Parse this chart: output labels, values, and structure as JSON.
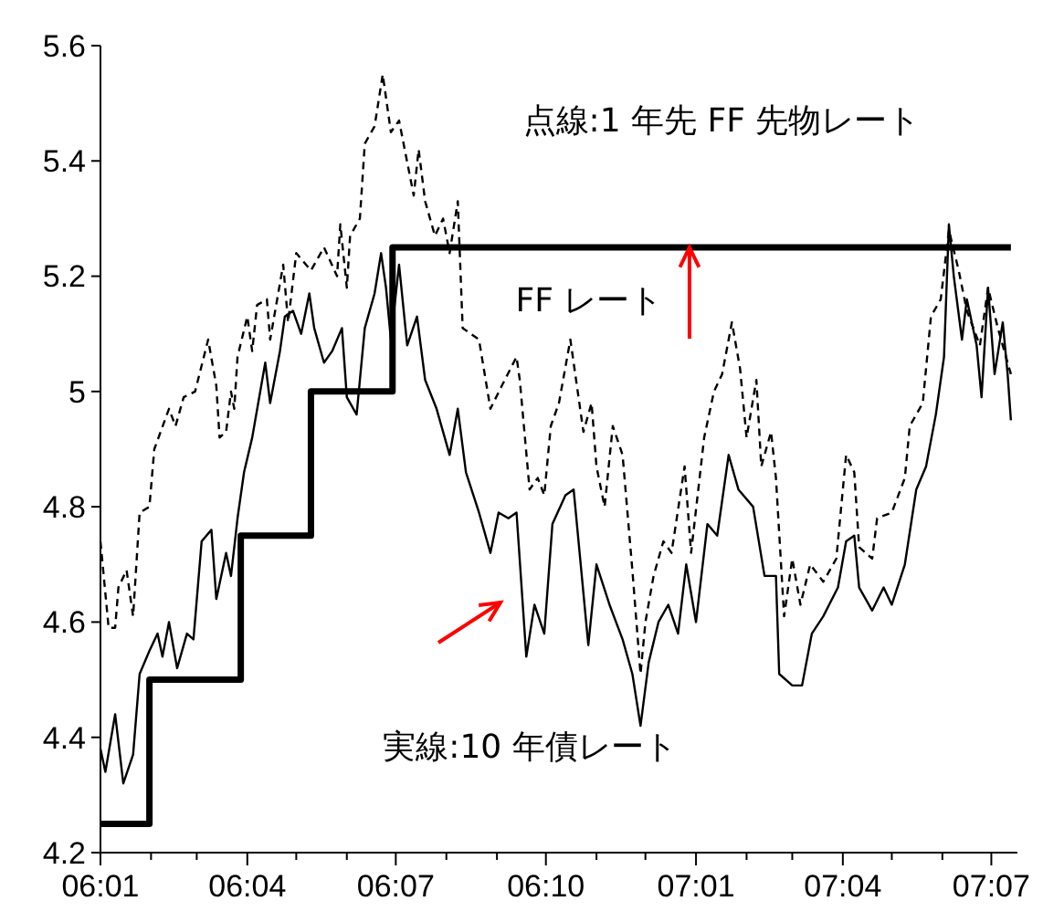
{
  "chart_data": {
    "type": "line",
    "ylim": [
      4.2,
      5.6
    ],
    "yticks": [
      4.2,
      4.4,
      4.6,
      4.8,
      5.0,
      5.2,
      5.4,
      5.6
    ],
    "xlim": [
      "2006-01-01",
      "2007-07-17"
    ],
    "xticks": [
      {
        "value": "2006-01-01",
        "label": "06:01"
      },
      {
        "value": "2006-02-01",
        "label": null
      },
      {
        "value": "2006-03-01",
        "label": null
      },
      {
        "value": "2006-04-01",
        "label": "06:04"
      },
      {
        "value": "2006-05-01",
        "label": null
      },
      {
        "value": "2006-06-01",
        "label": null
      },
      {
        "value": "2006-07-01",
        "label": "06:07"
      },
      {
        "value": "2006-08-01",
        "label": null
      },
      {
        "value": "2006-09-01",
        "label": null
      },
      {
        "value": "2006-10-01",
        "label": "06:10"
      },
      {
        "value": "2006-11-01",
        "label": null
      },
      {
        "value": "2006-12-01",
        "label": null
      },
      {
        "value": "2007-01-01",
        "label": "07:01"
      },
      {
        "value": "2007-02-01",
        "label": null
      },
      {
        "value": "2007-03-01",
        "label": null
      },
      {
        "value": "2007-04-01",
        "label": "07:04"
      },
      {
        "value": "2007-05-01",
        "label": null
      },
      {
        "value": "2007-06-01",
        "label": null
      },
      {
        "value": "2007-07-01",
        "label": "07:07"
      }
    ],
    "grid": false,
    "marker": "none",
    "series": [
      {
        "type": "step",
        "color": "#000000",
        "line_style": "solid",
        "x": [
          "2006-01-01",
          "2006-01-31",
          "2006-03-28",
          "2006-05-10",
          "2006-06-29",
          "2007-07-13"
        ],
        "values": [
          4.25,
          4.5,
          4.75,
          5.0,
          5.25,
          5.25
        ]
      },
      {
        "color": "#000000",
        "line_style": "dashed",
        "x": [
          "2006-01-01",
          "2006-01-06",
          "2006-01-10",
          "2006-01-12",
          "2006-01-17",
          "2006-01-21",
          "2006-01-25",
          "2006-01-31",
          "2006-02-03",
          "2006-02-12",
          "2006-02-16",
          "2006-02-21",
          "2006-02-28",
          "2006-03-08",
          "2006-03-13",
          "2006-03-15",
          "2006-03-19",
          "2006-03-22",
          "2006-03-24",
          "2006-03-26",
          "2006-04-01",
          "2006-04-04",
          "2006-04-07",
          "2006-04-13",
          "2006-04-15",
          "2006-04-23",
          "2006-04-26",
          "2006-05-01",
          "2006-05-10",
          "2006-05-18",
          "2006-05-26",
          "2006-05-28",
          "2006-06-01",
          "2006-06-03",
          "2006-06-09",
          "2006-06-12",
          "2006-06-18",
          "2006-06-23",
          "2006-06-28",
          "2006-07-03",
          "2006-07-12",
          "2006-07-15",
          "2006-07-19",
          "2006-07-25",
          "2006-07-30",
          "2006-08-03",
          "2006-08-08",
          "2006-08-11",
          "2006-08-21",
          "2006-08-28",
          "2006-09-04",
          "2006-09-13",
          "2006-09-15",
          "2006-09-21",
          "2006-09-26",
          "2006-09-30",
          "2006-10-04",
          "2006-10-09",
          "2006-10-16",
          "2006-10-24",
          "2006-10-29",
          "2006-11-01",
          "2006-11-06",
          "2006-11-11",
          "2006-11-17",
          "2006-11-23",
          "2006-11-28",
          "2006-12-01",
          "2006-12-06",
          "2006-12-12",
          "2006-12-17",
          "2006-12-25",
          "2006-12-29",
          "2007-01-06",
          "2007-01-12",
          "2007-01-17",
          "2007-01-23",
          "2007-01-28",
          "2007-02-01",
          "2007-02-07",
          "2007-02-10",
          "2007-02-16",
          "2007-02-19",
          "2007-02-24",
          "2007-03-01",
          "2007-03-06",
          "2007-03-12",
          "2007-03-20",
          "2007-03-28",
          "2007-04-03",
          "2007-04-08",
          "2007-04-11",
          "2007-04-19",
          "2007-04-22",
          "2007-05-01",
          "2007-05-09",
          "2007-05-12",
          "2007-05-20",
          "2007-05-25",
          "2007-05-31",
          "2007-06-05",
          "2007-06-11",
          "2007-06-16",
          "2007-06-24",
          "2007-06-29",
          "2007-07-05",
          "2007-07-10",
          "2007-07-13"
        ],
        "values": [
          4.74,
          4.59,
          4.59,
          4.66,
          4.69,
          4.61,
          4.79,
          4.8,
          4.9,
          4.97,
          4.94,
          4.99,
          5.0,
          5.09,
          5.01,
          4.92,
          4.93,
          5.0,
          4.97,
          5.06,
          5.13,
          5.07,
          5.15,
          5.16,
          5.09,
          5.22,
          5.12,
          5.24,
          5.21,
          5.25,
          5.2,
          5.29,
          5.18,
          5.27,
          5.3,
          5.43,
          5.46,
          5.55,
          5.45,
          5.47,
          5.34,
          5.42,
          5.33,
          5.27,
          5.3,
          5.24,
          5.33,
          5.11,
          5.09,
          4.97,
          5.01,
          5.06,
          5.02,
          4.83,
          4.85,
          4.82,
          4.94,
          4.98,
          5.09,
          4.93,
          4.98,
          4.87,
          4.8,
          4.94,
          4.89,
          4.69,
          4.51,
          4.6,
          4.68,
          4.74,
          4.72,
          4.87,
          4.72,
          4.92,
          5.0,
          5.03,
          5.12,
          5.04,
          4.92,
          5.02,
          4.87,
          4.93,
          4.85,
          4.61,
          4.71,
          4.63,
          4.7,
          4.67,
          4.71,
          4.89,
          4.86,
          4.73,
          4.71,
          4.78,
          4.79,
          4.85,
          4.94,
          4.98,
          5.13,
          5.16,
          5.28,
          5.21,
          5.14,
          5.08,
          5.18,
          5.11,
          5.06,
          5.03
        ]
      },
      {
        "color": "#000000",
        "line_style": "solid",
        "x": [
          "2006-01-01",
          "2006-01-04",
          "2006-01-10",
          "2006-01-15",
          "2006-01-21",
          "2006-01-25",
          "2006-01-31",
          "2006-02-05",
          "2006-02-08",
          "2006-02-12",
          "2006-02-17",
          "2006-02-23",
          "2006-02-27",
          "2006-03-04",
          "2006-03-10",
          "2006-03-13",
          "2006-03-19",
          "2006-03-22",
          "2006-03-26",
          "2006-03-30",
          "2006-04-04",
          "2006-04-12",
          "2006-04-15",
          "2006-04-21",
          "2006-04-24",
          "2006-04-29",
          "2006-05-04",
          "2006-05-09",
          "2006-05-12",
          "2006-05-18",
          "2006-05-23",
          "2006-05-29",
          "2006-06-01",
          "2006-06-07",
          "2006-06-12",
          "2006-06-18",
          "2006-06-22",
          "2006-06-25",
          "2006-06-28",
          "2006-07-03",
          "2006-07-08",
          "2006-07-14",
          "2006-07-19",
          "2006-07-26",
          "2006-08-03",
          "2006-08-08",
          "2006-08-13",
          "2006-08-21",
          "2006-08-28",
          "2006-09-02",
          "2006-09-08",
          "2006-09-13",
          "2006-09-19",
          "2006-09-24",
          "2006-09-30",
          "2006-10-05",
          "2006-10-13",
          "2006-10-18",
          "2006-10-27",
          "2006-11-01",
          "2006-11-09",
          "2006-11-17",
          "2006-11-23",
          "2006-11-28",
          "2006-12-03",
          "2006-12-09",
          "2006-12-15",
          "2006-12-21",
          "2006-12-26",
          "2007-01-01",
          "2007-01-08",
          "2007-01-14",
          "2007-01-21",
          "2007-01-27",
          "2007-02-05",
          "2007-02-12",
          "2007-02-19",
          "2007-02-21",
          "2007-03-01",
          "2007-03-07",
          "2007-03-13",
          "2007-03-20",
          "2007-03-29",
          "2007-04-03",
          "2007-04-08",
          "2007-04-11",
          "2007-04-19",
          "2007-04-26",
          "2007-05-01",
          "2007-05-09",
          "2007-05-16",
          "2007-05-22",
          "2007-05-28",
          "2007-06-02",
          "2007-06-05",
          "2007-06-08",
          "2007-06-13",
          "2007-06-16",
          "2007-06-22",
          "2007-06-25",
          "2007-06-29",
          "2007-07-03",
          "2007-07-08",
          "2007-07-11",
          "2007-07-13"
        ],
        "values": [
          4.38,
          4.34,
          4.44,
          4.32,
          4.37,
          4.51,
          4.55,
          4.58,
          4.54,
          4.6,
          4.52,
          4.58,
          4.57,
          4.74,
          4.76,
          4.64,
          4.72,
          4.68,
          4.78,
          4.86,
          4.92,
          5.05,
          4.98,
          5.07,
          5.13,
          5.14,
          5.1,
          5.17,
          5.11,
          5.05,
          5.07,
          5.11,
          4.99,
          4.96,
          5.11,
          5.17,
          5.24,
          5.18,
          5.09,
          5.22,
          5.08,
          5.13,
          5.02,
          4.97,
          4.89,
          4.97,
          4.86,
          4.79,
          4.72,
          4.79,
          4.78,
          4.79,
          4.54,
          4.63,
          4.58,
          4.77,
          4.82,
          4.83,
          4.56,
          4.7,
          4.63,
          4.57,
          4.51,
          4.42,
          4.53,
          4.6,
          4.63,
          4.58,
          4.7,
          4.6,
          4.77,
          4.75,
          4.89,
          4.83,
          4.8,
          4.68,
          4.68,
          4.51,
          4.49,
          4.49,
          4.58,
          4.61,
          4.66,
          4.74,
          4.75,
          4.66,
          4.62,
          4.66,
          4.63,
          4.7,
          4.83,
          4.87,
          4.96,
          5.06,
          5.29,
          5.2,
          5.09,
          5.16,
          5.08,
          4.99,
          5.18,
          5.03,
          5.12,
          5.03,
          4.95
        ]
      }
    ],
    "annotations": [
      "点線:1 年先 FF 先物レート",
      {
        "text": "FF レート",
        "x": "2006-12-28",
        "y": 5.25
      },
      "実線:10 年債レート"
    ]
  }
}
